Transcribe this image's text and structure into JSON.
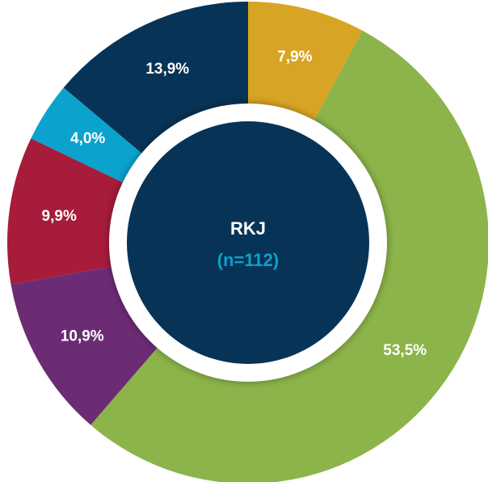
{
  "chart_data": {
    "type": "donut",
    "center_title": "RKJ",
    "center_subtitle": "(n=112)",
    "values": [
      7.9,
      53.5,
      10.9,
      9.9,
      4.0,
      13.9
    ],
    "value_labels": [
      "7,9%",
      "53,5%",
      "10,9%",
      "9,9%",
      "4,0%",
      "13,9%"
    ],
    "colors": [
      "#d8a423",
      "#8cb44a",
      "#6c2c74",
      "#a71c3a",
      "#0ba3cd",
      "#073356"
    ]
  }
}
